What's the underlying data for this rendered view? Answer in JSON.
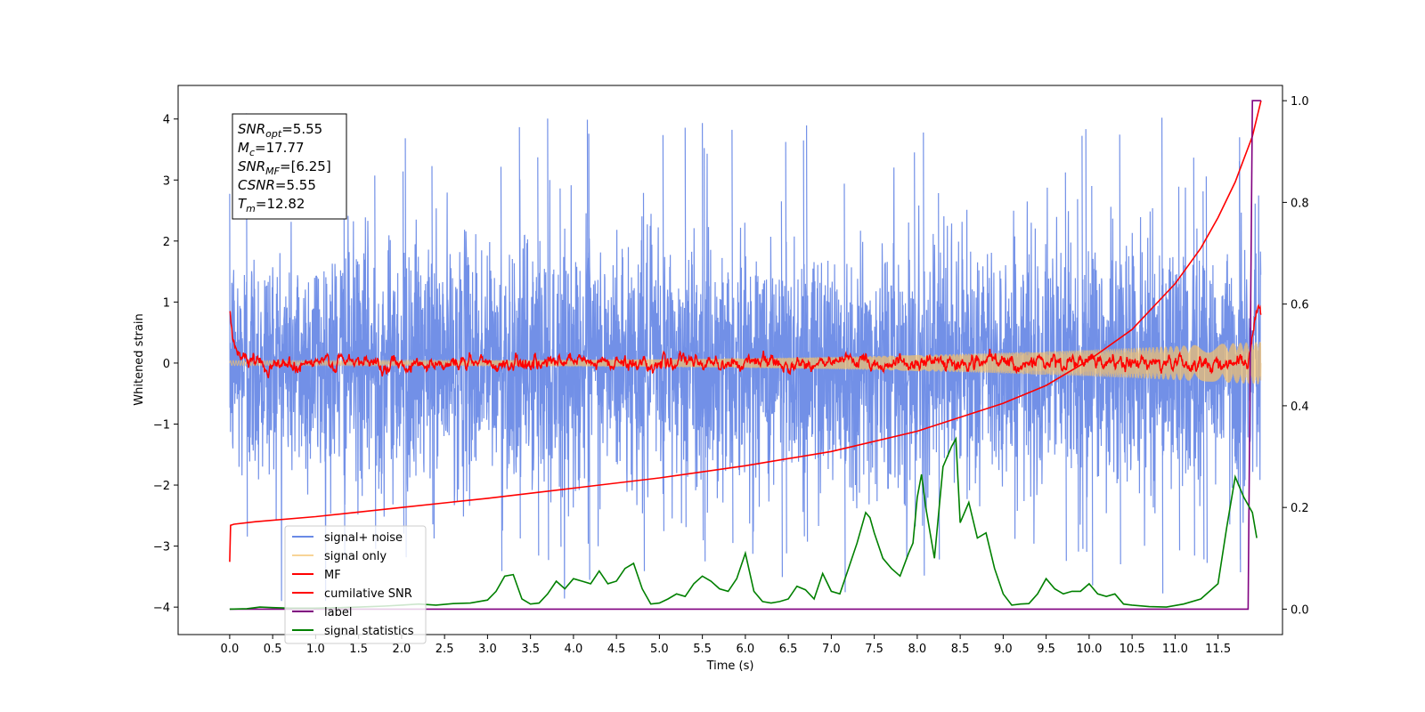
{
  "chart_data": {
    "type": "line",
    "xlabel": "Time (s)",
    "ylabel": "Whitened strain",
    "xlim": [
      -0.6,
      12.25
    ],
    "ylim": [
      -4.45,
      4.55
    ],
    "ylim_right": [
      -0.05,
      1.03
    ],
    "x_ticks": [
      "0.0",
      "0.5",
      "1.0",
      "1.5",
      "2.0",
      "2.5",
      "3.0",
      "3.5",
      "4.0",
      "4.5",
      "5.0",
      "5.5",
      "6.0",
      "6.5",
      "7.0",
      "7.5",
      "8.0",
      "8.5",
      "9.0",
      "9.5",
      "10.0",
      "10.5",
      "11.0",
      "11.5"
    ],
    "y_ticks": [
      "4",
      "3",
      "2",
      "1",
      "0",
      "−1",
      "−2",
      "−3",
      "−4"
    ],
    "y_ticks_right": [
      "1.0",
      "0.8",
      "0.6",
      "0.4",
      "0.2",
      "0.0"
    ],
    "grid": false,
    "legend_position": "lower-left",
    "annotation": [
      {
        "name": "SNR",
        "sub": "opt",
        "value": "=5.55"
      },
      {
        "name": "M",
        "sub": "c",
        "value": "=17.77"
      },
      {
        "name": "SNR",
        "sub": "MF",
        "value": "=[6.25]"
      },
      {
        "name": "CSNR",
        "sub": "",
        "value": "=5.55"
      },
      {
        "name": "T",
        "sub": "m",
        "value": "=12.82"
      }
    ],
    "series": [
      {
        "name": "signal+ noise",
        "color": "#6a8ae6",
        "axis": "left",
        "kind": "noise",
        "x_range": [
          0.0,
          12.0
        ],
        "amplitude_sigma": 1.0,
        "extremes": [
          -3.9,
          4.18
        ]
      },
      {
        "name": "signal only",
        "color": "#f5c26b",
        "axis": "left",
        "kind": "chirp",
        "x_range": [
          0.0,
          12.0
        ],
        "amplitude_start": 0.04,
        "amplitude_end": 0.35
      },
      {
        "name": "MF",
        "color": "#ff0000",
        "axis": "left",
        "kind": "filter",
        "x_range": [
          0.0,
          12.0
        ],
        "start_value": 0.85,
        "end_value": 0.9,
        "fluctuation": 0.15
      },
      {
        "name": "cumilative SNR",
        "color": "#ff0000",
        "axis": "right",
        "x": [
          0.0,
          0.01,
          0.05,
          0.3,
          1.0,
          2.0,
          3.0,
          4.0,
          5.0,
          6.0,
          7.0,
          8.0,
          9.0,
          9.5,
          10.0,
          10.5,
          11.0,
          11.3,
          11.5,
          11.7,
          11.9,
          12.0
        ],
        "y": [
          0.093,
          0.165,
          0.167,
          0.172,
          0.182,
          0.2,
          0.218,
          0.238,
          0.258,
          0.282,
          0.31,
          0.35,
          0.405,
          0.44,
          0.49,
          0.55,
          0.64,
          0.71,
          0.77,
          0.84,
          0.93,
          1.0
        ]
      },
      {
        "name": "label",
        "color": "#800080",
        "axis": "right",
        "x": [
          0.0,
          11.85,
          11.9,
          12.0
        ],
        "y": [
          0.0,
          0.0,
          1.0,
          1.0
        ]
      },
      {
        "name": "signal statistics",
        "color": "#008000",
        "axis": "right",
        "x": [
          0.0,
          0.2,
          0.35,
          0.5,
          0.7,
          1.0,
          1.3,
          1.5,
          1.8,
          2.0,
          2.2,
          2.4,
          2.6,
          2.8,
          3.0,
          3.1,
          3.2,
          3.3,
          3.4,
          3.5,
          3.6,
          3.7,
          3.8,
          3.9,
          4.0,
          4.1,
          4.2,
          4.3,
          4.4,
          4.5,
          4.6,
          4.7,
          4.8,
          4.9,
          5.0,
          5.1,
          5.2,
          5.3,
          5.4,
          5.5,
          5.6,
          5.7,
          5.8,
          5.9,
          6.0,
          6.1,
          6.2,
          6.3,
          6.4,
          6.5,
          6.6,
          6.7,
          6.8,
          6.9,
          7.0,
          7.1,
          7.2,
          7.3,
          7.4,
          7.45,
          7.5,
          7.6,
          7.7,
          7.8,
          7.9,
          7.95,
          8.0,
          8.05,
          8.1,
          8.2,
          8.3,
          8.4,
          8.45,
          8.5,
          8.6,
          8.7,
          8.8,
          8.9,
          9.0,
          9.1,
          9.2,
          9.3,
          9.4,
          9.5,
          9.6,
          9.7,
          9.8,
          9.9,
          10.0,
          10.1,
          10.2,
          10.3,
          10.4,
          10.5,
          10.7,
          10.9,
          11.1,
          11.3,
          11.5,
          11.6,
          11.7,
          11.8,
          11.9,
          11.95
        ],
        "y": [
          0.0,
          0.001,
          0.004,
          0.003,
          0.002,
          0.002,
          0.003,
          0.004,
          0.006,
          0.008,
          0.01,
          0.008,
          0.011,
          0.012,
          0.018,
          0.035,
          0.065,
          0.068,
          0.02,
          0.01,
          0.012,
          0.03,
          0.055,
          0.04,
          0.06,
          0.055,
          0.05,
          0.075,
          0.05,
          0.055,
          0.08,
          0.09,
          0.04,
          0.01,
          0.012,
          0.02,
          0.03,
          0.025,
          0.05,
          0.065,
          0.055,
          0.04,
          0.035,
          0.06,
          0.11,
          0.035,
          0.015,
          0.012,
          0.015,
          0.02,
          0.045,
          0.038,
          0.02,
          0.07,
          0.035,
          0.03,
          0.08,
          0.13,
          0.19,
          0.18,
          0.15,
          0.1,
          0.08,
          0.065,
          0.11,
          0.13,
          0.22,
          0.265,
          0.2,
          0.1,
          0.28,
          0.32,
          0.335,
          0.17,
          0.21,
          0.14,
          0.15,
          0.08,
          0.03,
          0.008,
          0.01,
          0.011,
          0.03,
          0.06,
          0.04,
          0.03,
          0.035,
          0.035,
          0.05,
          0.03,
          0.025,
          0.03,
          0.01,
          0.008,
          0.005,
          0.004,
          0.01,
          0.02,
          0.05,
          0.16,
          0.26,
          0.22,
          0.19,
          0.14
        ]
      }
    ]
  }
}
